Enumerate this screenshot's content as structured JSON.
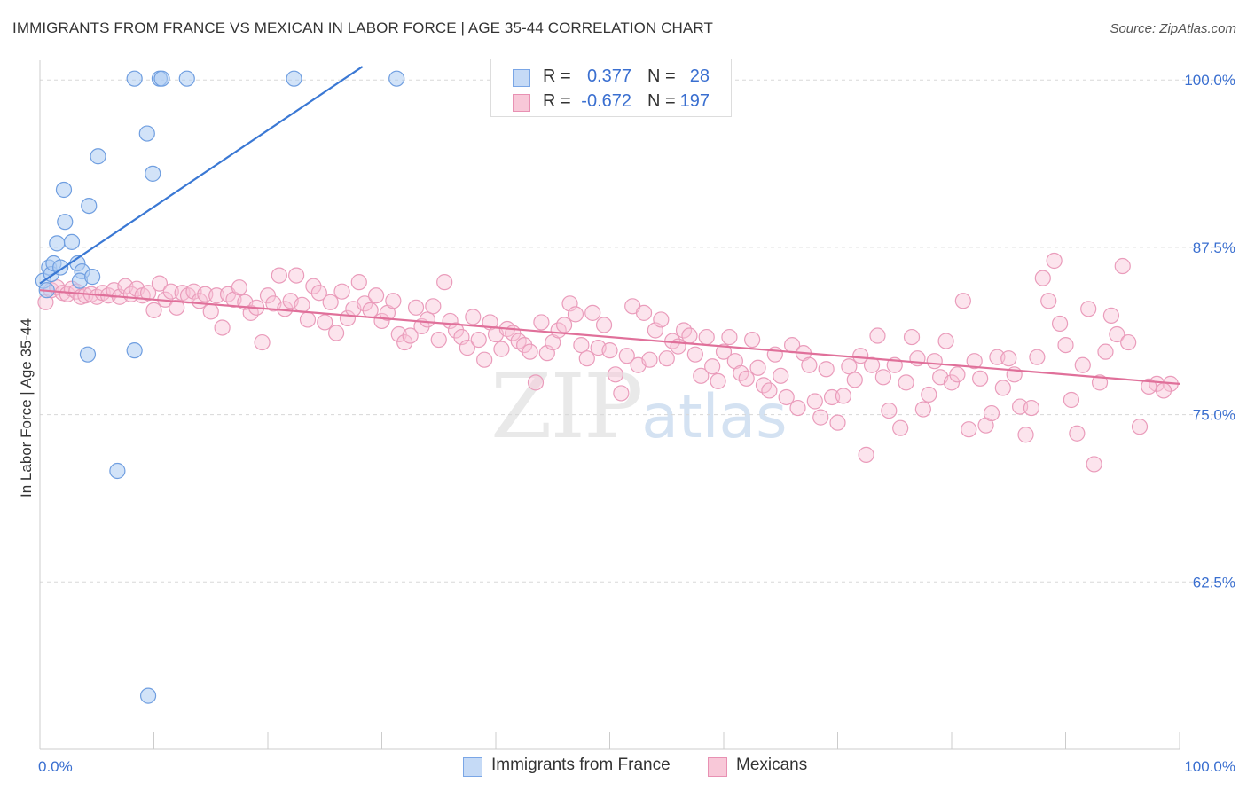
{
  "title": "IMMIGRANTS FROM FRANCE VS MEXICAN IN LABOR FORCE | AGE 35-44 CORRELATION CHART",
  "source": "Source: ZipAtlas.com",
  "watermark": {
    "zip": "ZIP",
    "atlas": "atlas"
  },
  "legend": {
    "r_label": "R =",
    "n_label": "N =",
    "rows": [
      {
        "r": "0.377",
        "n": "28",
        "color": "#7aa6e6",
        "fill": "#c5daf6"
      },
      {
        "r": "-0.672",
        "n": "197",
        "color": "#e891b3",
        "fill": "#f8c8d8"
      }
    ]
  },
  "bottom_legend": [
    {
      "label": "Immigrants from France"
    },
    {
      "label": "Mexicans"
    }
  ],
  "chart_data": {
    "type": "scatter",
    "xlabel": "",
    "ylabel": "In Labor Force | Age 35-44",
    "xlim": [
      0,
      100
    ],
    "ylim": [
      50,
      102
    ],
    "x_tick_labels": [
      "0.0%",
      "100.0%"
    ],
    "y_ticks": [
      62.5,
      75.0,
      87.5,
      100.0
    ],
    "y_tick_labels": [
      "62.5%",
      "75.0%",
      "87.5%",
      "100.0%"
    ],
    "grid": true,
    "legend_position": "top-center",
    "colors": {
      "france": "#3a78d4",
      "mexicans": "#e0709a",
      "axis_text": "#3a6fd0"
    },
    "series": [
      {
        "name": "Immigrants from France",
        "trend": {
          "x": [
            0.0,
            28.3
          ],
          "y": [
            84.8,
            101.0
          ]
        },
        "points": [
          [
            0.3,
            85.0
          ],
          [
            0.6,
            84.3
          ],
          [
            0.8,
            86.0
          ],
          [
            1.0,
            85.5
          ],
          [
            1.2,
            86.3
          ],
          [
            1.5,
            87.8
          ],
          [
            1.8,
            86.0
          ],
          [
            2.1,
            91.8
          ],
          [
            2.2,
            89.4
          ],
          [
            2.8,
            87.9
          ],
          [
            3.3,
            86.3
          ],
          [
            3.7,
            85.7
          ],
          [
            3.5,
            85.0
          ],
          [
            4.3,
            90.6
          ],
          [
            4.6,
            85.3
          ],
          [
            5.1,
            94.3
          ],
          [
            8.3,
            100.1
          ],
          [
            9.4,
            96.0
          ],
          [
            9.9,
            93.0
          ],
          [
            10.5,
            100.1
          ],
          [
            10.7,
            100.1
          ],
          [
            12.9,
            100.1
          ],
          [
            22.3,
            100.1
          ],
          [
            31.3,
            100.1
          ],
          [
            4.2,
            79.5
          ],
          [
            8.3,
            79.8
          ],
          [
            6.8,
            70.8
          ],
          [
            9.5,
            54.0
          ]
        ]
      },
      {
        "name": "Mexicans",
        "trend": {
          "x": [
            0.0,
            100.0
          ],
          "y": [
            84.3,
            77.3
          ]
        },
        "points": [
          [
            0.5,
            83.4
          ],
          [
            1.0,
            84.3
          ],
          [
            1.5,
            84.5
          ],
          [
            2.0,
            84.1
          ],
          [
            2.4,
            84.0
          ],
          [
            2.8,
            84.4
          ],
          [
            3.2,
            84.2
          ],
          [
            3.6,
            83.8
          ],
          [
            4.0,
            83.9
          ],
          [
            4.5,
            84.0
          ],
          [
            5.0,
            83.8
          ],
          [
            5.5,
            84.1
          ],
          [
            6.0,
            83.9
          ],
          [
            6.5,
            84.3
          ],
          [
            7.0,
            83.8
          ],
          [
            7.5,
            84.6
          ],
          [
            8.0,
            84.0
          ],
          [
            8.5,
            84.4
          ],
          [
            9.0,
            83.9
          ],
          [
            9.5,
            84.1
          ],
          [
            10.0,
            82.8
          ],
          [
            10.5,
            84.8
          ],
          [
            11.0,
            83.6
          ],
          [
            11.5,
            84.2
          ],
          [
            12.0,
            83.0
          ],
          [
            12.5,
            84.1
          ],
          [
            13.0,
            83.9
          ],
          [
            13.5,
            84.2
          ],
          [
            14.0,
            83.5
          ],
          [
            14.5,
            84.0
          ],
          [
            15.0,
            82.7
          ],
          [
            15.5,
            83.9
          ],
          [
            16.0,
            81.5
          ],
          [
            16.5,
            84.0
          ],
          [
            17.0,
            83.6
          ],
          [
            17.5,
            84.5
          ],
          [
            18.0,
            83.4
          ],
          [
            18.5,
            82.6
          ],
          [
            19.0,
            83.0
          ],
          [
            19.5,
            80.4
          ],
          [
            20.0,
            83.9
          ],
          [
            20.5,
            83.3
          ],
          [
            21.0,
            85.4
          ],
          [
            21.5,
            82.9
          ],
          [
            22.0,
            83.5
          ],
          [
            22.5,
            85.4
          ],
          [
            23.0,
            83.2
          ],
          [
            23.5,
            82.1
          ],
          [
            24.0,
            84.6
          ],
          [
            24.5,
            84.1
          ],
          [
            25.0,
            81.9
          ],
          [
            25.5,
            83.4
          ],
          [
            26.0,
            81.1
          ],
          [
            26.5,
            84.2
          ],
          [
            27.0,
            82.2
          ],
          [
            27.5,
            82.9
          ],
          [
            28.0,
            84.9
          ],
          [
            28.5,
            83.3
          ],
          [
            29.0,
            82.8
          ],
          [
            29.5,
            83.9
          ],
          [
            30.0,
            82.0
          ],
          [
            30.5,
            82.6
          ],
          [
            31.0,
            83.5
          ],
          [
            31.5,
            81.0
          ],
          [
            32.0,
            80.4
          ],
          [
            32.5,
            80.9
          ],
          [
            33.0,
            83.0
          ],
          [
            33.5,
            81.6
          ],
          [
            34.0,
            82.1
          ],
          [
            34.5,
            83.1
          ],
          [
            35.0,
            80.6
          ],
          [
            35.5,
            84.9
          ],
          [
            36.0,
            82.0
          ],
          [
            36.5,
            81.3
          ],
          [
            37.0,
            80.8
          ],
          [
            37.5,
            80.0
          ],
          [
            38.0,
            82.3
          ],
          [
            38.5,
            80.6
          ],
          [
            39.0,
            79.1
          ],
          [
            39.5,
            81.9
          ],
          [
            40.0,
            81.0
          ],
          [
            40.5,
            79.9
          ],
          [
            41.0,
            81.4
          ],
          [
            41.5,
            81.1
          ],
          [
            42.0,
            80.5
          ],
          [
            42.5,
            80.2
          ],
          [
            43.0,
            79.7
          ],
          [
            43.5,
            77.4
          ],
          [
            44.0,
            81.9
          ],
          [
            44.5,
            79.6
          ],
          [
            45.0,
            80.4
          ],
          [
            45.5,
            81.3
          ],
          [
            46.0,
            81.7
          ],
          [
            46.5,
            83.3
          ],
          [
            47.0,
            82.5
          ],
          [
            47.5,
            80.2
          ],
          [
            48.0,
            79.2
          ],
          [
            48.5,
            82.6
          ],
          [
            49.0,
            80.0
          ],
          [
            49.5,
            81.7
          ],
          [
            50.0,
            79.8
          ],
          [
            50.5,
            78.0
          ],
          [
            51.0,
            76.6
          ],
          [
            51.5,
            79.4
          ],
          [
            52.0,
            83.1
          ],
          [
            52.5,
            78.7
          ],
          [
            53.0,
            82.6
          ],
          [
            53.5,
            79.1
          ],
          [
            54.0,
            81.3
          ],
          [
            54.5,
            82.1
          ],
          [
            55.0,
            79.2
          ],
          [
            55.5,
            80.5
          ],
          [
            56.0,
            80.1
          ],
          [
            56.5,
            81.3
          ],
          [
            57.0,
            80.9
          ],
          [
            57.5,
            79.5
          ],
          [
            58.0,
            77.9
          ],
          [
            58.5,
            80.8
          ],
          [
            59.0,
            78.6
          ],
          [
            59.5,
            77.5
          ],
          [
            60.0,
            79.7
          ],
          [
            60.5,
            80.8
          ],
          [
            61.0,
            79.0
          ],
          [
            61.5,
            78.1
          ],
          [
            62.0,
            77.7
          ],
          [
            62.5,
            80.6
          ],
          [
            63.0,
            78.5
          ],
          [
            63.5,
            77.2
          ],
          [
            64.0,
            76.8
          ],
          [
            64.5,
            79.5
          ],
          [
            65.0,
            77.9
          ],
          [
            65.5,
            76.3
          ],
          [
            66.0,
            80.2
          ],
          [
            66.5,
            75.5
          ],
          [
            67.0,
            79.6
          ],
          [
            67.5,
            78.7
          ],
          [
            68.0,
            76.0
          ],
          [
            68.5,
            74.8
          ],
          [
            69.0,
            78.4
          ],
          [
            69.5,
            76.3
          ],
          [
            70.0,
            74.4
          ],
          [
            70.5,
            76.4
          ],
          [
            71.0,
            78.6
          ],
          [
            71.5,
            77.6
          ],
          [
            72.0,
            79.4
          ],
          [
            72.5,
            72.0
          ],
          [
            73.0,
            78.7
          ],
          [
            73.5,
            80.9
          ],
          [
            74.0,
            77.8
          ],
          [
            74.5,
            75.3
          ],
          [
            75.0,
            78.7
          ],
          [
            75.5,
            74.0
          ],
          [
            76.0,
            77.4
          ],
          [
            76.5,
            80.8
          ],
          [
            77.0,
            79.2
          ],
          [
            77.5,
            75.4
          ],
          [
            78.0,
            76.5
          ],
          [
            78.5,
            79.0
          ],
          [
            79.0,
            77.8
          ],
          [
            79.5,
            80.5
          ],
          [
            80.0,
            77.4
          ],
          [
            80.5,
            78.0
          ],
          [
            81.0,
            83.5
          ],
          [
            81.5,
            73.9
          ],
          [
            82.0,
            79.0
          ],
          [
            82.5,
            77.7
          ],
          [
            83.0,
            74.2
          ],
          [
            83.5,
            75.1
          ],
          [
            84.0,
            79.3
          ],
          [
            84.5,
            77.0
          ],
          [
            85.0,
            79.2
          ],
          [
            85.5,
            78.0
          ],
          [
            86.0,
            75.6
          ],
          [
            86.5,
            73.5
          ],
          [
            87.0,
            75.5
          ],
          [
            87.5,
            79.3
          ],
          [
            88.0,
            85.2
          ],
          [
            88.5,
            83.5
          ],
          [
            89.0,
            86.5
          ],
          [
            89.5,
            81.8
          ],
          [
            90.0,
            80.2
          ],
          [
            90.5,
            76.1
          ],
          [
            91.0,
            73.6
          ],
          [
            91.5,
            78.7
          ],
          [
            92.0,
            82.9
          ],
          [
            92.5,
            71.3
          ],
          [
            93.0,
            77.4
          ],
          [
            93.5,
            79.7
          ],
          [
            94.0,
            82.4
          ],
          [
            94.5,
            81.0
          ],
          [
            95.0,
            86.1
          ],
          [
            95.5,
            80.4
          ],
          [
            98.0,
            77.3
          ],
          [
            99.2,
            77.3
          ],
          [
            96.5,
            74.1
          ],
          [
            97.3,
            77.1
          ],
          [
            98.6,
            76.8
          ]
        ]
      }
    ]
  }
}
